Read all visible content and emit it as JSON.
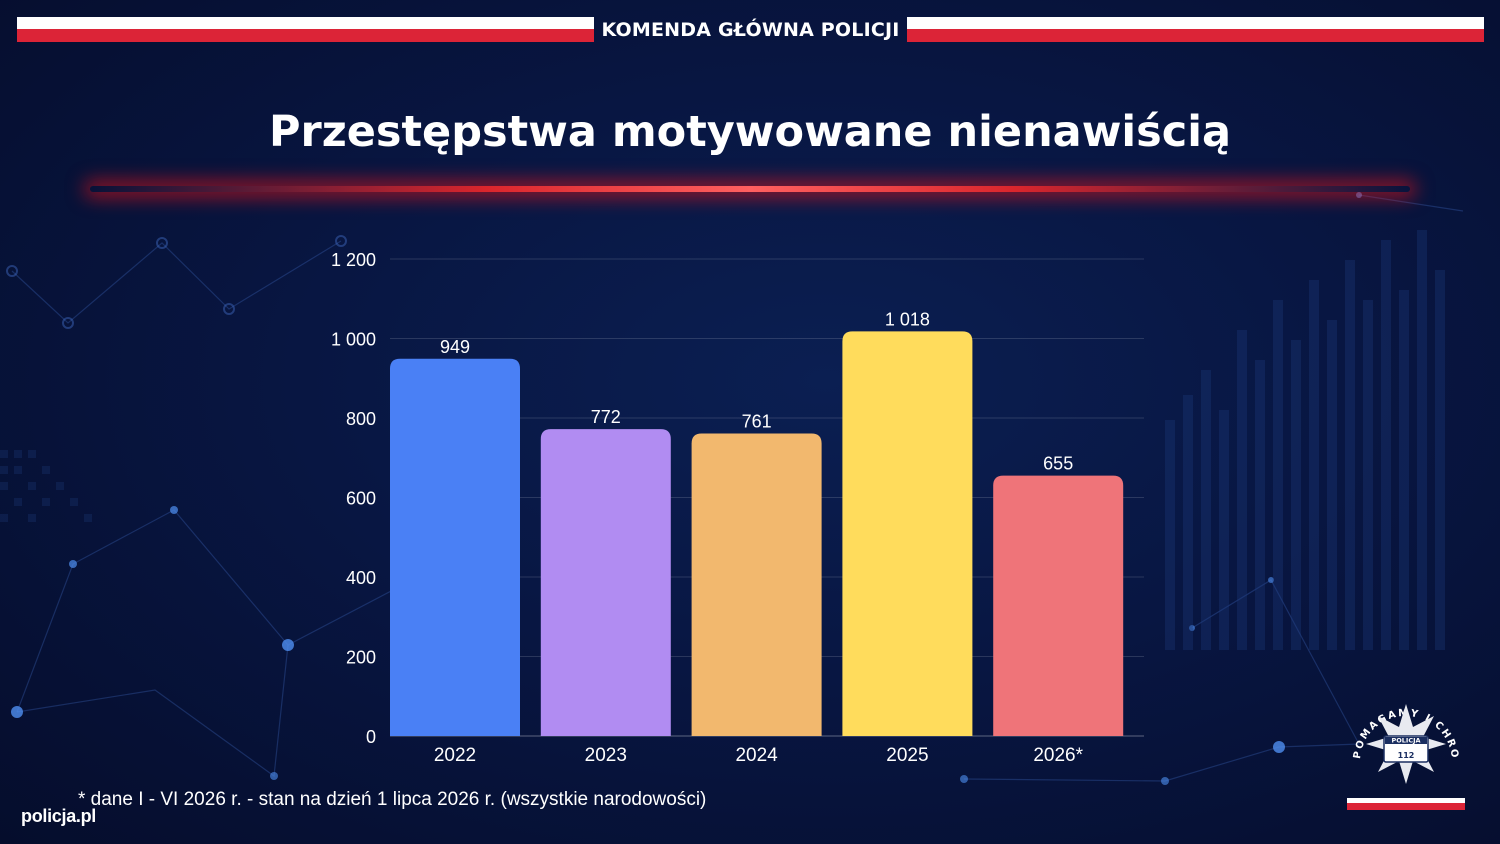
{
  "header": {
    "organization": "KOMENDA GŁÓWNA POLICJI"
  },
  "colors": {
    "flag_white": "#ffffff",
    "flag_red": "#dc2437",
    "background": "#081642"
  },
  "chart_data": {
    "type": "bar",
    "title": "Przestępstwa motywowane nienawiścią",
    "categories": [
      "2022",
      "2023",
      "2024",
      "2025",
      "2026*"
    ],
    "values": [
      949,
      772,
      761,
      1018,
      655
    ],
    "value_labels": [
      "949",
      "772",
      "761",
      "1 018",
      "655"
    ],
    "bar_colors": [
      "#4a80f5",
      "#b18cf2",
      "#f2b86e",
      "#ffdc5c",
      "#ef7479"
    ],
    "ylim": [
      0,
      1200
    ],
    "yticks": [
      0,
      200,
      400,
      600,
      800,
      1000,
      1200
    ],
    "ytick_labels": [
      "0",
      "200",
      "400",
      "600",
      "800",
      "1 000",
      "1 200"
    ],
    "grid": true,
    "xlabel": "",
    "ylabel": ""
  },
  "footnote": "* dane I - VI 2026 r. - stan na dzień 1 lipca 2026 r. (wszystkie narodowości)",
  "site": "policja.pl",
  "badge": {
    "motto": "POMAGAMY I CHRONIMY",
    "name": "POLICJA",
    "number": "112"
  }
}
